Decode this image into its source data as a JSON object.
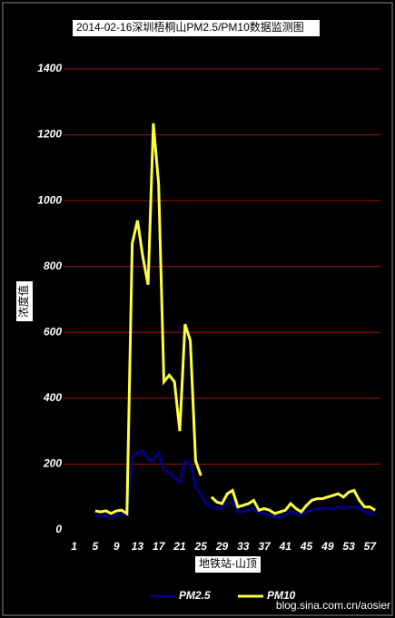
{
  "chart_data": {
    "type": "line",
    "title": "2014-02-16深圳梧桐山PM2.5/PM10数据监测图",
    "x_label": "地铁站-山顶",
    "y_label": "浓度值",
    "watermark": "blog.sina.com.cn/aosier",
    "x": [
      1,
      2,
      3,
      4,
      5,
      6,
      7,
      8,
      9,
      10,
      11,
      12,
      13,
      14,
      15,
      16,
      17,
      18,
      19,
      20,
      21,
      22,
      23,
      24,
      25,
      26,
      27,
      28,
      29,
      30,
      31,
      32,
      33,
      34,
      35,
      36,
      37,
      38,
      39,
      40,
      41,
      42,
      43,
      44,
      45,
      46,
      47,
      48,
      49,
      50,
      51,
      52,
      53,
      54,
      55,
      56,
      57,
      58
    ],
    "series": [
      {
        "name": "PM2.5",
        "color": "#000080",
        "values": [
          null,
          null,
          null,
          null,
          45,
          40,
          45,
          35,
          45,
          50,
          45,
          220,
          235,
          240,
          215,
          210,
          235,
          180,
          175,
          160,
          145,
          210,
          200,
          130,
          110,
          80,
          70,
          65,
          65,
          80,
          85,
          55,
          55,
          60,
          65,
          50,
          50,
          45,
          40,
          40,
          45,
          55,
          50,
          45,
          55,
          60,
          65,
          65,
          65,
          65,
          70,
          65,
          70,
          70,
          65,
          55,
          50,
          45
        ]
      },
      {
        "name": "PM10",
        "color": "#ffff40",
        "values": [
          null,
          null,
          null,
          null,
          58,
          55,
          58,
          50,
          58,
          60,
          50,
          870,
          940,
          830,
          745,
          1235,
          1050,
          450,
          470,
          450,
          300,
          625,
          575,
          210,
          165,
          null,
          100,
          85,
          80,
          110,
          120,
          70,
          75,
          80,
          90,
          60,
          65,
          60,
          50,
          55,
          60,
          80,
          65,
          55,
          75,
          90,
          95,
          95,
          100,
          105,
          110,
          100,
          115,
          120,
          90,
          70,
          70,
          60
        ]
      }
    ],
    "xlim": [
      -1,
      59
    ],
    "xticks": [
      1,
      5,
      9,
      13,
      17,
      21,
      25,
      29,
      33,
      37,
      41,
      45,
      49,
      53,
      57
    ],
    "ylim": [
      0,
      1400
    ],
    "yticks": [
      0,
      200,
      400,
      600,
      800,
      1000,
      1200,
      1400
    ],
    "grid": true,
    "legend": "bottom"
  }
}
